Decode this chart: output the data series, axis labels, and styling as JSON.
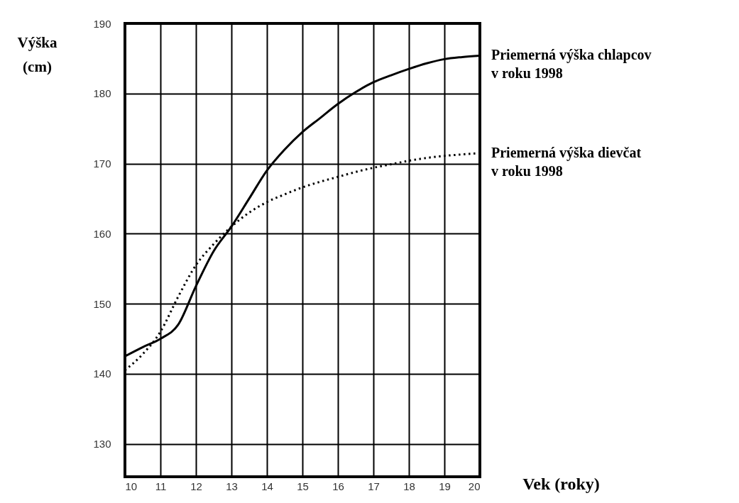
{
  "chart_data": {
    "type": "line",
    "xlabel": "Vek (roky)",
    "ylabel": "Výška (cm)",
    "xlim": [
      10,
      20
    ],
    "xticks": [
      10,
      11,
      12,
      13,
      14,
      15,
      16,
      17,
      18,
      19,
      20
    ],
    "ylim": [
      125.3,
      190
    ],
    "yticks": [
      130,
      140,
      150,
      160,
      170,
      180,
      190
    ],
    "grid": true,
    "legend": false,
    "series": [
      {
        "name": "Priemerná výška chlapcov v roku 1998",
        "color": "#000000",
        "line_style": "solid",
        "x": [
          10,
          10.5,
          11,
          11.5,
          12,
          12.5,
          13,
          13.5,
          14,
          14.5,
          15,
          15.5,
          16,
          16.5,
          17,
          17.5,
          18,
          18.5,
          19,
          19.5,
          20
        ],
        "values": [
          142.5,
          143.8,
          145,
          147,
          152.5,
          157.5,
          161,
          165,
          169,
          172,
          174.5,
          176.5,
          178.5,
          180.2,
          181.6,
          182.6,
          183.5,
          184.3,
          184.9,
          185.2,
          185.4
        ]
      },
      {
        "name": "Priemerná výška dievčat v roku 1998",
        "color": "#000000",
        "line_style": "dotted",
        "x": [
          10,
          10.5,
          11,
          11.5,
          12,
          12.5,
          13,
          13.5,
          14,
          14.5,
          15,
          15.5,
          16,
          16.5,
          17,
          17.5,
          18,
          18.5,
          19,
          19.5,
          20
        ],
        "values": [
          140.5,
          142.8,
          146,
          151,
          155.5,
          158.5,
          161,
          163,
          164.5,
          165.6,
          166.6,
          167.4,
          168.1,
          168.8,
          169.4,
          169.9,
          170.4,
          170.8,
          171.1,
          171.3,
          171.5
        ]
      }
    ]
  }
}
